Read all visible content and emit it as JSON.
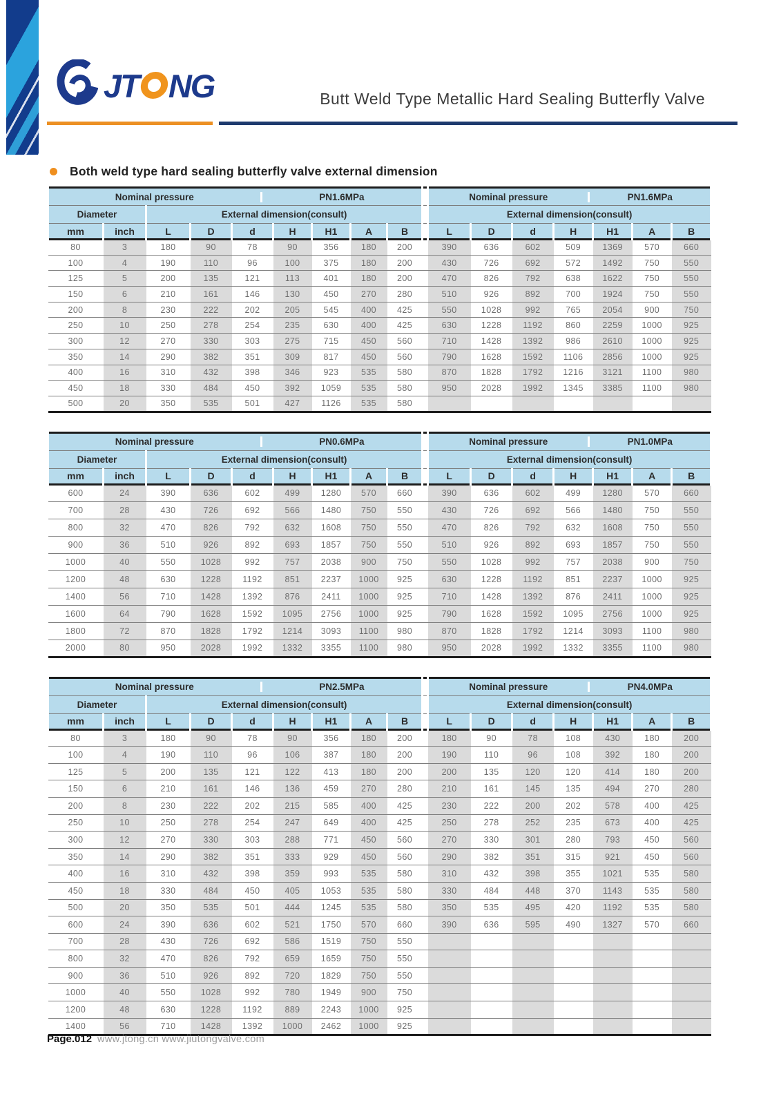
{
  "header": {
    "logo_text_jt": "JT",
    "logo_text_ng": "NG",
    "title": "Butt Weld Type Metallic Hard Sealing Butterfly Valve",
    "accent_orange": "#ec9023",
    "accent_navy": "#1e3a6e",
    "logo_blue": "#1d3a8c"
  },
  "section_title": "Both weld type hard sealing butterfly valve external dimension",
  "labels": {
    "nominal_pressure": "Nominal pressure",
    "diameter": "Diameter",
    "external_dimension": "External dimension(consult)",
    "col_mm": "mm",
    "col_inch": "inch",
    "dim_cols": [
      "L",
      "D",
      "d",
      "H",
      "H1",
      "A",
      "B"
    ]
  },
  "tables": [
    {
      "left_pressure": "PN1.6MPa",
      "right_pressure": "PN1.6MPa",
      "rows": [
        {
          "mm": "80",
          "inch": "3",
          "left": [
            "180",
            "90",
            "78",
            "90",
            "356",
            "180",
            "200"
          ],
          "right": [
            "390",
            "636",
            "602",
            "509",
            "1369",
            "570",
            "660"
          ]
        },
        {
          "mm": "100",
          "inch": "4",
          "left": [
            "190",
            "110",
            "96",
            "100",
            "375",
            "180",
            "200"
          ],
          "right": [
            "430",
            "726",
            "692",
            "572",
            "1492",
            "750",
            "550"
          ]
        },
        {
          "mm": "125",
          "inch": "5",
          "left": [
            "200",
            "135",
            "121",
            "113",
            "401",
            "180",
            "200"
          ],
          "right": [
            "470",
            "826",
            "792",
            "638",
            "1622",
            "750",
            "550"
          ]
        },
        {
          "mm": "150",
          "inch": "6",
          "left": [
            "210",
            "161",
            "146",
            "130",
            "450",
            "270",
            "280"
          ],
          "right": [
            "510",
            "926",
            "892",
            "700",
            "1924",
            "750",
            "550"
          ]
        },
        {
          "mm": "200",
          "inch": "8",
          "left": [
            "230",
            "222",
            "202",
            "205",
            "545",
            "400",
            "425"
          ],
          "right": [
            "550",
            "1028",
            "992",
            "765",
            "2054",
            "900",
            "750"
          ]
        },
        {
          "mm": "250",
          "inch": "10",
          "left": [
            "250",
            "278",
            "254",
            "235",
            "630",
            "400",
            "425"
          ],
          "right": [
            "630",
            "1228",
            "1192",
            "860",
            "2259",
            "1000",
            "925"
          ]
        },
        {
          "mm": "300",
          "inch": "12",
          "left": [
            "270",
            "330",
            "303",
            "275",
            "715",
            "450",
            "560"
          ],
          "right": [
            "710",
            "1428",
            "1392",
            "986",
            "2610",
            "1000",
            "925"
          ]
        },
        {
          "mm": "350",
          "inch": "14",
          "left": [
            "290",
            "382",
            "351",
            "309",
            "817",
            "450",
            "560"
          ],
          "right": [
            "790",
            "1628",
            "1592",
            "1106",
            "2856",
            "1000",
            "925"
          ]
        },
        {
          "mm": "400",
          "inch": "16",
          "left": [
            "310",
            "432",
            "398",
            "346",
            "923",
            "535",
            "580"
          ],
          "right": [
            "870",
            "1828",
            "1792",
            "1216",
            "3121",
            "1100",
            "980"
          ]
        },
        {
          "mm": "450",
          "inch": "18",
          "left": [
            "330",
            "484",
            "450",
            "392",
            "1059",
            "535",
            "580"
          ],
          "right": [
            "950",
            "2028",
            "1992",
            "1345",
            "3385",
            "1100",
            "980"
          ]
        },
        {
          "mm": "500",
          "inch": "20",
          "left": [
            "350",
            "535",
            "501",
            "427",
            "1126",
            "535",
            "580"
          ],
          "right": [
            "",
            "",
            "",
            "",
            "",
            "",
            ""
          ]
        }
      ]
    },
    {
      "left_pressure": "PN0.6MPa",
      "right_pressure": "PN1.0MPa",
      "rows": [
        {
          "mm": "600",
          "inch": "24",
          "left": [
            "390",
            "636",
            "602",
            "499",
            "1280",
            "570",
            "660"
          ],
          "right": [
            "390",
            "636",
            "602",
            "499",
            "1280",
            "570",
            "660"
          ]
        },
        {
          "mm": "700",
          "inch": "28",
          "left": [
            "430",
            "726",
            "692",
            "566",
            "1480",
            "750",
            "550"
          ],
          "right": [
            "430",
            "726",
            "692",
            "566",
            "1480",
            "750",
            "550"
          ]
        },
        {
          "mm": "800",
          "inch": "32",
          "left": [
            "470",
            "826",
            "792",
            "632",
            "1608",
            "750",
            "550"
          ],
          "right": [
            "470",
            "826",
            "792",
            "632",
            "1608",
            "750",
            "550"
          ]
        },
        {
          "mm": "900",
          "inch": "36",
          "left": [
            "510",
            "926",
            "892",
            "693",
            "1857",
            "750",
            "550"
          ],
          "right": [
            "510",
            "926",
            "892",
            "693",
            "1857",
            "750",
            "550"
          ]
        },
        {
          "mm": "1000",
          "inch": "40",
          "left": [
            "550",
            "1028",
            "992",
            "757",
            "2038",
            "900",
            "750"
          ],
          "right": [
            "550",
            "1028",
            "992",
            "757",
            "2038",
            "900",
            "750"
          ]
        },
        {
          "mm": "1200",
          "inch": "48",
          "left": [
            "630",
            "1228",
            "1192",
            "851",
            "2237",
            "1000",
            "925"
          ],
          "right": [
            "630",
            "1228",
            "1192",
            "851",
            "2237",
            "1000",
            "925"
          ]
        },
        {
          "mm": "1400",
          "inch": "56",
          "left": [
            "710",
            "1428",
            "1392",
            "876",
            "2411",
            "1000",
            "925"
          ],
          "right": [
            "710",
            "1428",
            "1392",
            "876",
            "2411",
            "1000",
            "925"
          ]
        },
        {
          "mm": "1600",
          "inch": "64",
          "left": [
            "790",
            "1628",
            "1592",
            "1095",
            "2756",
            "1000",
            "925"
          ],
          "right": [
            "790",
            "1628",
            "1592",
            "1095",
            "2756",
            "1000",
            "925"
          ]
        },
        {
          "mm": "1800",
          "inch": "72",
          "left": [
            "870",
            "1828",
            "1792",
            "1214",
            "3093",
            "1100",
            "980"
          ],
          "right": [
            "870",
            "1828",
            "1792",
            "1214",
            "3093",
            "1100",
            "980"
          ]
        },
        {
          "mm": "2000",
          "inch": "80",
          "left": [
            "950",
            "2028",
            "1992",
            "1332",
            "3355",
            "1100",
            "980"
          ],
          "right": [
            "950",
            "2028",
            "1992",
            "1332",
            "3355",
            "1100",
            "980"
          ]
        }
      ]
    },
    {
      "left_pressure": "PN2.5MPa",
      "right_pressure": "PN4.0MPa",
      "rows": [
        {
          "mm": "80",
          "inch": "3",
          "left": [
            "180",
            "90",
            "78",
            "90",
            "356",
            "180",
            "200"
          ],
          "right": [
            "180",
            "90",
            "78",
            "108",
            "430",
            "180",
            "200"
          ]
        },
        {
          "mm": "100",
          "inch": "4",
          "left": [
            "190",
            "110",
            "96",
            "106",
            "387",
            "180",
            "200"
          ],
          "right": [
            "190",
            "110",
            "96",
            "108",
            "392",
            "180",
            "200"
          ]
        },
        {
          "mm": "125",
          "inch": "5",
          "left": [
            "200",
            "135",
            "121",
            "122",
            "413",
            "180",
            "200"
          ],
          "right": [
            "200",
            "135",
            "120",
            "120",
            "414",
            "180",
            "200"
          ]
        },
        {
          "mm": "150",
          "inch": "6",
          "left": [
            "210",
            "161",
            "146",
            "136",
            "459",
            "270",
            "280"
          ],
          "right": [
            "210",
            "161",
            "145",
            "135",
            "494",
            "270",
            "280"
          ]
        },
        {
          "mm": "200",
          "inch": "8",
          "left": [
            "230",
            "222",
            "202",
            "215",
            "585",
            "400",
            "425"
          ],
          "right": [
            "230",
            "222",
            "200",
            "202",
            "578",
            "400",
            "425"
          ]
        },
        {
          "mm": "250",
          "inch": "10",
          "left": [
            "250",
            "278",
            "254",
            "247",
            "649",
            "400",
            "425"
          ],
          "right": [
            "250",
            "278",
            "252",
            "235",
            "673",
            "400",
            "425"
          ]
        },
        {
          "mm": "300",
          "inch": "12",
          "left": [
            "270",
            "330",
            "303",
            "288",
            "771",
            "450",
            "560"
          ],
          "right": [
            "270",
            "330",
            "301",
            "280",
            "793",
            "450",
            "560"
          ]
        },
        {
          "mm": "350",
          "inch": "14",
          "left": [
            "290",
            "382",
            "351",
            "333",
            "929",
            "450",
            "560"
          ],
          "right": [
            "290",
            "382",
            "351",
            "315",
            "921",
            "450",
            "560"
          ]
        },
        {
          "mm": "400",
          "inch": "16",
          "left": [
            "310",
            "432",
            "398",
            "359",
            "993",
            "535",
            "580"
          ],
          "right": [
            "310",
            "432",
            "398",
            "355",
            "1021",
            "535",
            "580"
          ]
        },
        {
          "mm": "450",
          "inch": "18",
          "left": [
            "330",
            "484",
            "450",
            "405",
            "1053",
            "535",
            "580"
          ],
          "right": [
            "330",
            "484",
            "448",
            "370",
            "1143",
            "535",
            "580"
          ]
        },
        {
          "mm": "500",
          "inch": "20",
          "left": [
            "350",
            "535",
            "501",
            "444",
            "1245",
            "535",
            "580"
          ],
          "right": [
            "350",
            "535",
            "495",
            "420",
            "1192",
            "535",
            "580"
          ]
        },
        {
          "mm": "600",
          "inch": "24",
          "left": [
            "390",
            "636",
            "602",
            "521",
            "1750",
            "570",
            "660"
          ],
          "right": [
            "390",
            "636",
            "595",
            "490",
            "1327",
            "570",
            "660"
          ]
        },
        {
          "mm": "700",
          "inch": "28",
          "left": [
            "430",
            "726",
            "692",
            "586",
            "1519",
            "750",
            "550"
          ],
          "right": [
            "",
            "",
            "",
            "",
            "",
            "",
            ""
          ]
        },
        {
          "mm": "800",
          "inch": "32",
          "left": [
            "470",
            "826",
            "792",
            "659",
            "1659",
            "750",
            "550"
          ],
          "right": [
            "",
            "",
            "",
            "",
            "",
            "",
            ""
          ]
        },
        {
          "mm": "900",
          "inch": "36",
          "left": [
            "510",
            "926",
            "892",
            "720",
            "1829",
            "750",
            "550"
          ],
          "right": [
            "",
            "",
            "",
            "",
            "",
            "",
            ""
          ]
        },
        {
          "mm": "1000",
          "inch": "40",
          "left": [
            "550",
            "1028",
            "992",
            "780",
            "1949",
            "900",
            "750"
          ],
          "right": [
            "",
            "",
            "",
            "",
            "",
            "",
            ""
          ]
        },
        {
          "mm": "1200",
          "inch": "48",
          "left": [
            "630",
            "1228",
            "1192",
            "889",
            "2243",
            "1000",
            "925"
          ],
          "right": [
            "",
            "",
            "",
            "",
            "",
            "",
            ""
          ]
        },
        {
          "mm": "1400",
          "inch": "56",
          "left": [
            "710",
            "1428",
            "1392",
            "1000",
            "2462",
            "1000",
            "925"
          ],
          "right": [
            "",
            "",
            "",
            "",
            "",
            "",
            ""
          ]
        }
      ]
    }
  ],
  "footer": {
    "page": "Page.012",
    "links": "www.jtong.cn www.jiutongvalve.com"
  }
}
